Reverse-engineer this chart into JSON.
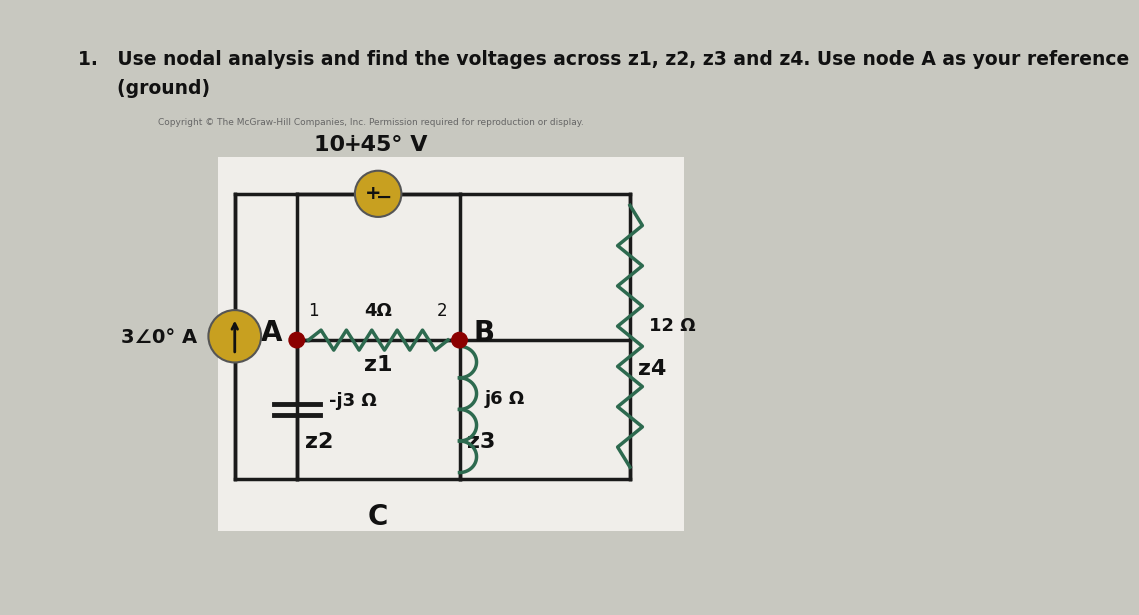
{
  "background_color": "#c8c8c0",
  "circuit_bg": "#f0eeea",
  "wire_color": "#1a1a1a",
  "text_color": "#111111",
  "node_dot_color": "#8b0000",
  "voltage_source_fill": "#c8a020",
  "current_source_fill": "#c8a020",
  "resistor_color": "#2d6a4f",
  "inductor_color": "#2d6a4f",
  "capacitor_color": "#1a1a1a",
  "copyright_text": "Copyright © The McGraw-Hill Companies, Inc. Permission required for reproduction or display.",
  "voltage_label": "10∔45° V",
  "current_label": "3∠0° A",
  "z1_label": "z1",
  "z2_label": "z2",
  "z3_label": "z3",
  "z4_label": "z4",
  "z1_value": "4Ω",
  "z2_value": "-j3 Ω",
  "z3_value": "j6 Ω",
  "z4_value": "12 Ω",
  "node_A": "A",
  "node_B": "B",
  "node_C": "C",
  "node_1": "1",
  "node_2": "2",
  "title_line1": "1.   Use nodal analysis and find the voltages across z1, z2, z3 and z4. Use node A as your reference",
  "title_line2": "      (ground)"
}
